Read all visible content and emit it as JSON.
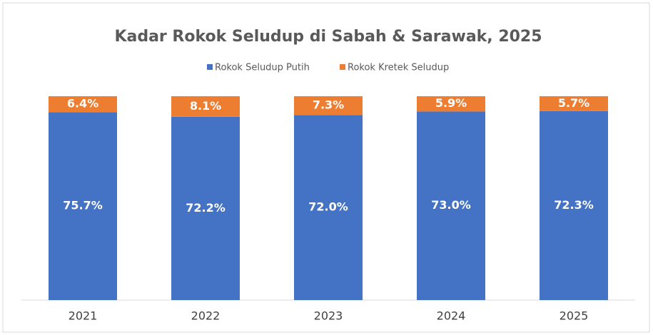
{
  "chart_data": {
    "type": "bar",
    "stacked": "percent",
    "title": "Kadar Rokok Seludup di Sabah & Sarawak, 2025",
    "categories": [
      "2021",
      "2022",
      "2023",
      "2024",
      "2025"
    ],
    "series": [
      {
        "name": "Rokok Seludup Putih",
        "color": "#4472c4",
        "values": [
          75.7,
          72.2,
          72.0,
          73.0,
          72.3
        ],
        "value_labels": [
          "75.7%",
          "72.2%",
          "72.0%",
          "73.0%",
          "72.3%"
        ]
      },
      {
        "name": "Rokok Kretek Seludup",
        "color": "#ed7d31",
        "values": [
          6.4,
          8.1,
          7.3,
          5.9,
          5.7
        ],
        "value_labels": [
          "6.4%",
          "8.1%",
          "7.3%",
          "5.9%",
          "5.7%"
        ]
      }
    ],
    "legend": "top"
  }
}
